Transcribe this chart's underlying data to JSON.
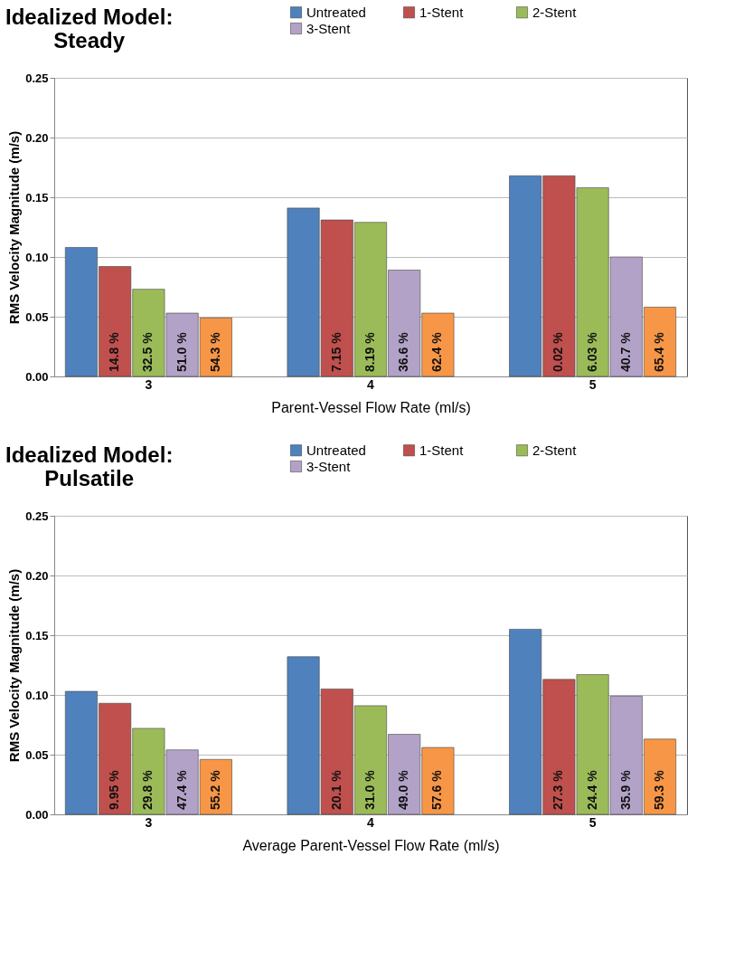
{
  "chart_data": [
    {
      "type": "bar",
      "title": "Idealized Model:\nSteady",
      "xlabel": "Parent-Vessel Flow Rate (ml/s)",
      "ylabel": "RMS Velocity Magnitude (m/s)",
      "categories": [
        "3",
        "4",
        "5"
      ],
      "series": [
        {
          "name": "Untreated",
          "color": "#4f81bd",
          "values": [
            0.108,
            0.141,
            0.168
          ]
        },
        {
          "name": "1-Stent",
          "color": "#c0504d",
          "values": [
            0.092,
            0.131,
            0.168
          ]
        },
        {
          "name": "2-Stent",
          "color": "#9bbb59",
          "values": [
            0.073,
            0.129,
            0.158
          ]
        },
        {
          "name": "3-Stent",
          "color": "#b3a2c7",
          "values": [
            0.053,
            0.089,
            0.1
          ]
        },
        {
          "color": "#f79646",
          "values": [
            0.049,
            0.053,
            0.058
          ]
        }
      ],
      "annotations": [
        "14.8 %",
        "32.5 %",
        "51.0 %",
        "54.3 %",
        "7.15 %",
        "8.19 %",
        "36.6 %",
        "62.4 %",
        "0.02 %",
        "6.03 %",
        "40.7 %",
        "65.4 %"
      ],
      "ylim": [
        0,
        0.25
      ],
      "yticks": [
        {
          "value": 0,
          "label": "0.00"
        },
        {
          "value": 0.05,
          "label": "0.05"
        },
        {
          "value": 0.1,
          "label": "0.10"
        },
        {
          "value": 0.15,
          "label": "0.15"
        },
        {
          "value": 0.2,
          "label": "0.20"
        },
        {
          "value": 0.25,
          "label": "0.25"
        }
      ],
      "grid": "y",
      "legend": "top"
    },
    {
      "type": "bar",
      "title": "Idealized Model:\nPulsatile",
      "xlabel": "Average Parent-Vessel Flow Rate (ml/s)",
      "ylabel": "RMS Velocity Magnitude (m/s)",
      "categories": [
        "3",
        "4",
        "5"
      ],
      "series": [
        {
          "name": "Untreated",
          "color": "#4f81bd",
          "values": [
            0.103,
            0.132,
            0.155
          ]
        },
        {
          "name": "1-Stent",
          "color": "#c0504d",
          "values": [
            0.093,
            0.105,
            0.113
          ]
        },
        {
          "name": "2-Stent",
          "color": "#9bbb59",
          "values": [
            0.072,
            0.091,
            0.117
          ]
        },
        {
          "name": "3-Stent",
          "color": "#b3a2c7",
          "values": [
            0.054,
            0.067,
            0.099
          ]
        },
        {
          "color": "#f79646",
          "values": [
            0.046,
            0.056,
            0.063
          ]
        }
      ],
      "annotations": [
        "9.95 %",
        "29.8 %",
        "47.4 %",
        "55.2 %",
        "20.1 %",
        "31.0 %",
        "49.0 %",
        "57.6 %",
        "27.3 %",
        "24.4 %",
        "35.9 %",
        "59.3 %"
      ],
      "ylim": [
        0,
        0.25
      ],
      "yticks": [
        {
          "value": 0,
          "label": "0.00"
        },
        {
          "value": 0.05,
          "label": "0.05"
        },
        {
          "value": 0.1,
          "label": "0.10"
        },
        {
          "value": 0.15,
          "label": "0.15"
        },
        {
          "value": 0.2,
          "label": "0.20"
        },
        {
          "value": 0.25,
          "label": "0.25"
        }
      ],
      "grid": "y",
      "legend": "top"
    }
  ]
}
